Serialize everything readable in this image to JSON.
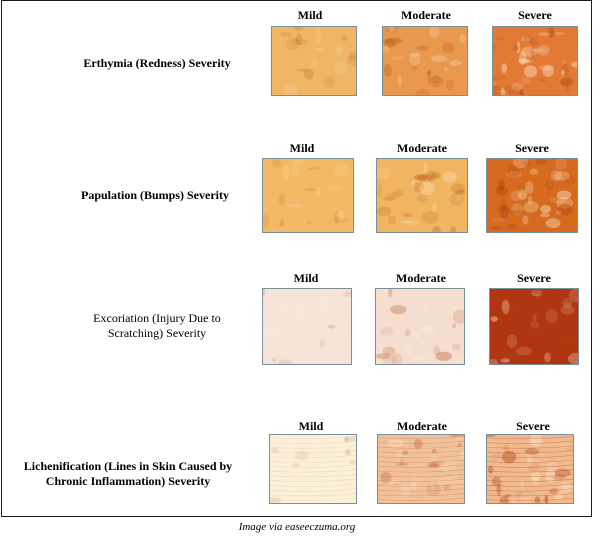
{
  "rows": [
    {
      "label": "Erthymia (Redness) Severity",
      "levels": [
        "Mild",
        "Moderate",
        "Severe"
      ],
      "swatch_colors": [
        "#efb666",
        "#e9994f",
        "#e27a36"
      ]
    },
    {
      "label": "Papulation (Bumps) Severity",
      "levels": [
        "Mild",
        "Moderate",
        "Severe"
      ],
      "swatch_colors": [
        "#f3b964",
        "#f1b561",
        "#d66a1f"
      ]
    },
    {
      "label": "Excoriation (Injury Due to Scratching) Severity",
      "levels": [
        "Mild",
        "Moderate",
        "Severe"
      ],
      "swatch_colors": [
        "#f7e3d7",
        "#f5ddcf",
        "#b23512"
      ]
    },
    {
      "label": "Lichenification (Lines in Skin Caused by Chronic Inflammation) Severity",
      "levels": [
        "Mild",
        "Moderate",
        "Severe"
      ],
      "swatch_colors": [
        "#fbf0d8",
        "#f1c19a",
        "#f0b98e"
      ]
    }
  ],
  "caption": "Image via easeeczuma.org"
}
